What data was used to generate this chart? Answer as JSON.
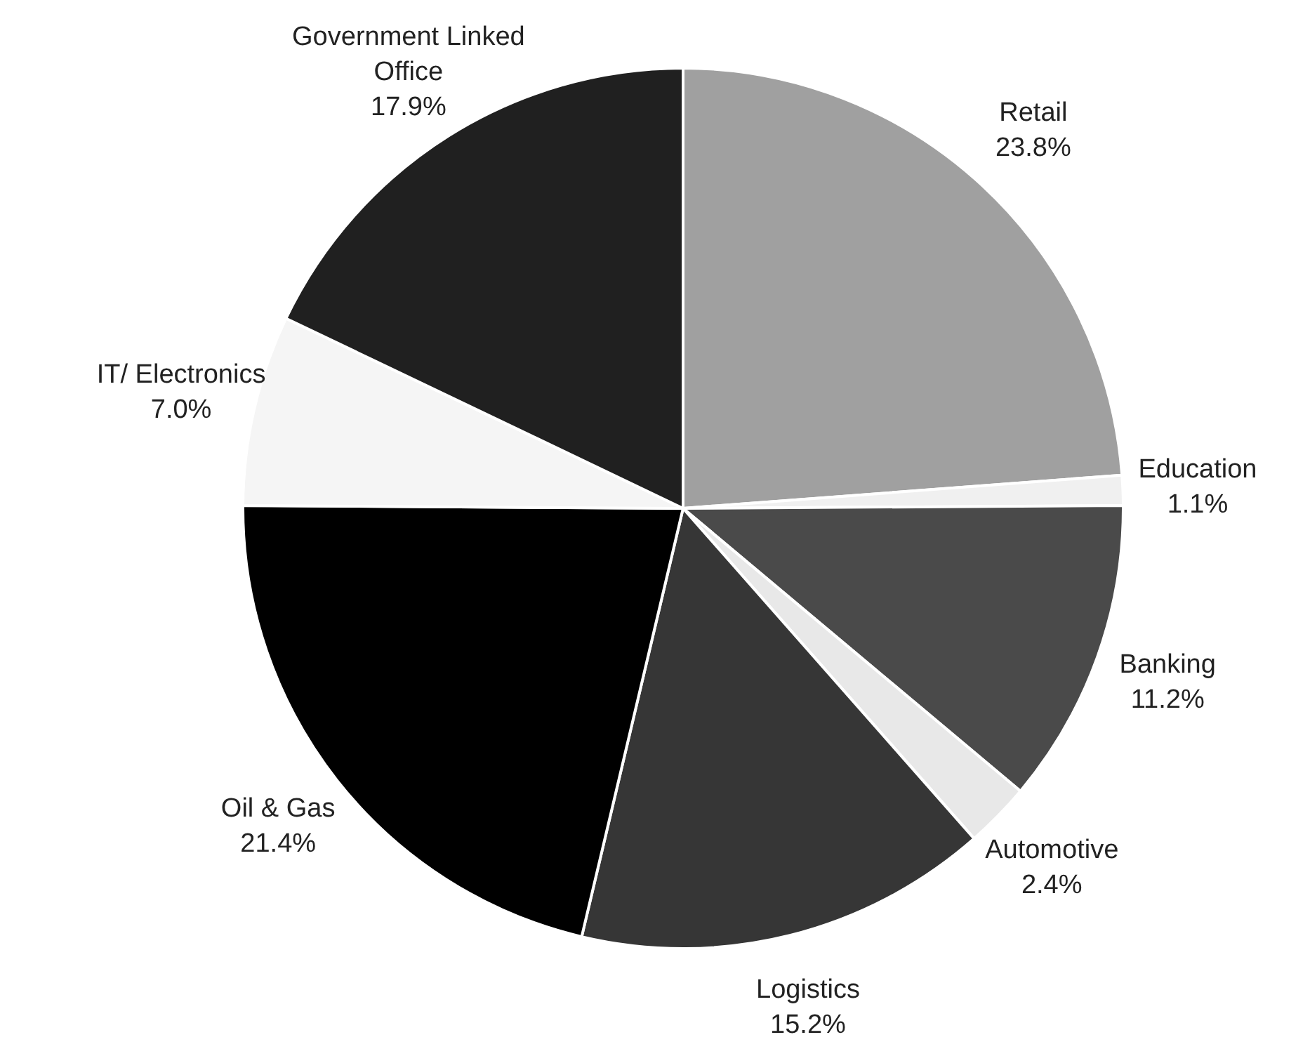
{
  "chart_data": {
    "type": "pie",
    "categories": [
      "Retail",
      "Education",
      "Banking",
      "Automotive",
      "Logistics",
      "Oil & Gas",
      "IT/ Electronics",
      "Government Linked Office"
    ],
    "values": [
      23.8,
      1.1,
      11.2,
      2.4,
      15.2,
      21.4,
      7.0,
      17.9
    ],
    "value_labels": [
      "23.8%",
      "1.1%",
      "11.2%",
      "2.4%",
      "15.2%",
      "21.4%",
      "7.0%",
      "17.9%"
    ],
    "colors": [
      "#a0a0a0",
      "#f0f0f0",
      "#4a4a4a",
      "#e8e8e8",
      "#363636",
      "#000000",
      "#f5f5f5",
      "#202020"
    ],
    "legend": false
  }
}
